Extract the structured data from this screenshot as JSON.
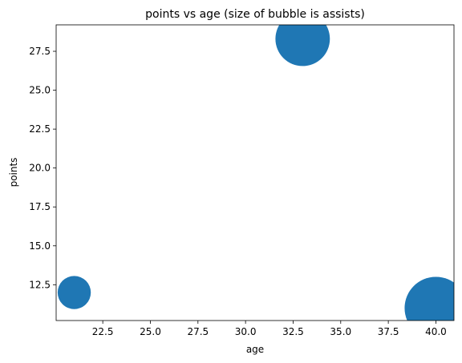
{
  "chart_data": {
    "type": "scatter",
    "title": "points vs age (size of bubble is assists)",
    "xlabel": "age",
    "ylabel": "points",
    "xlim": [
      20.05,
      40.95
    ],
    "ylim": [
      10.2,
      29.2
    ],
    "xticks": [
      22.5,
      25.0,
      27.5,
      30.0,
      32.5,
      35.0,
      37.5,
      40.0
    ],
    "yticks": [
      12.5,
      15.0,
      17.5,
      20.0,
      22.5,
      25.0,
      27.5
    ],
    "grid": false,
    "color": "#1f77b4",
    "points": [
      {
        "age": 21,
        "points": 12,
        "size_rel": 0.53
      },
      {
        "age": 33,
        "points": 28.3,
        "size_rel": 0.87
      },
      {
        "age": 40,
        "points": 11,
        "size_rel": 1.0
      }
    ]
  }
}
